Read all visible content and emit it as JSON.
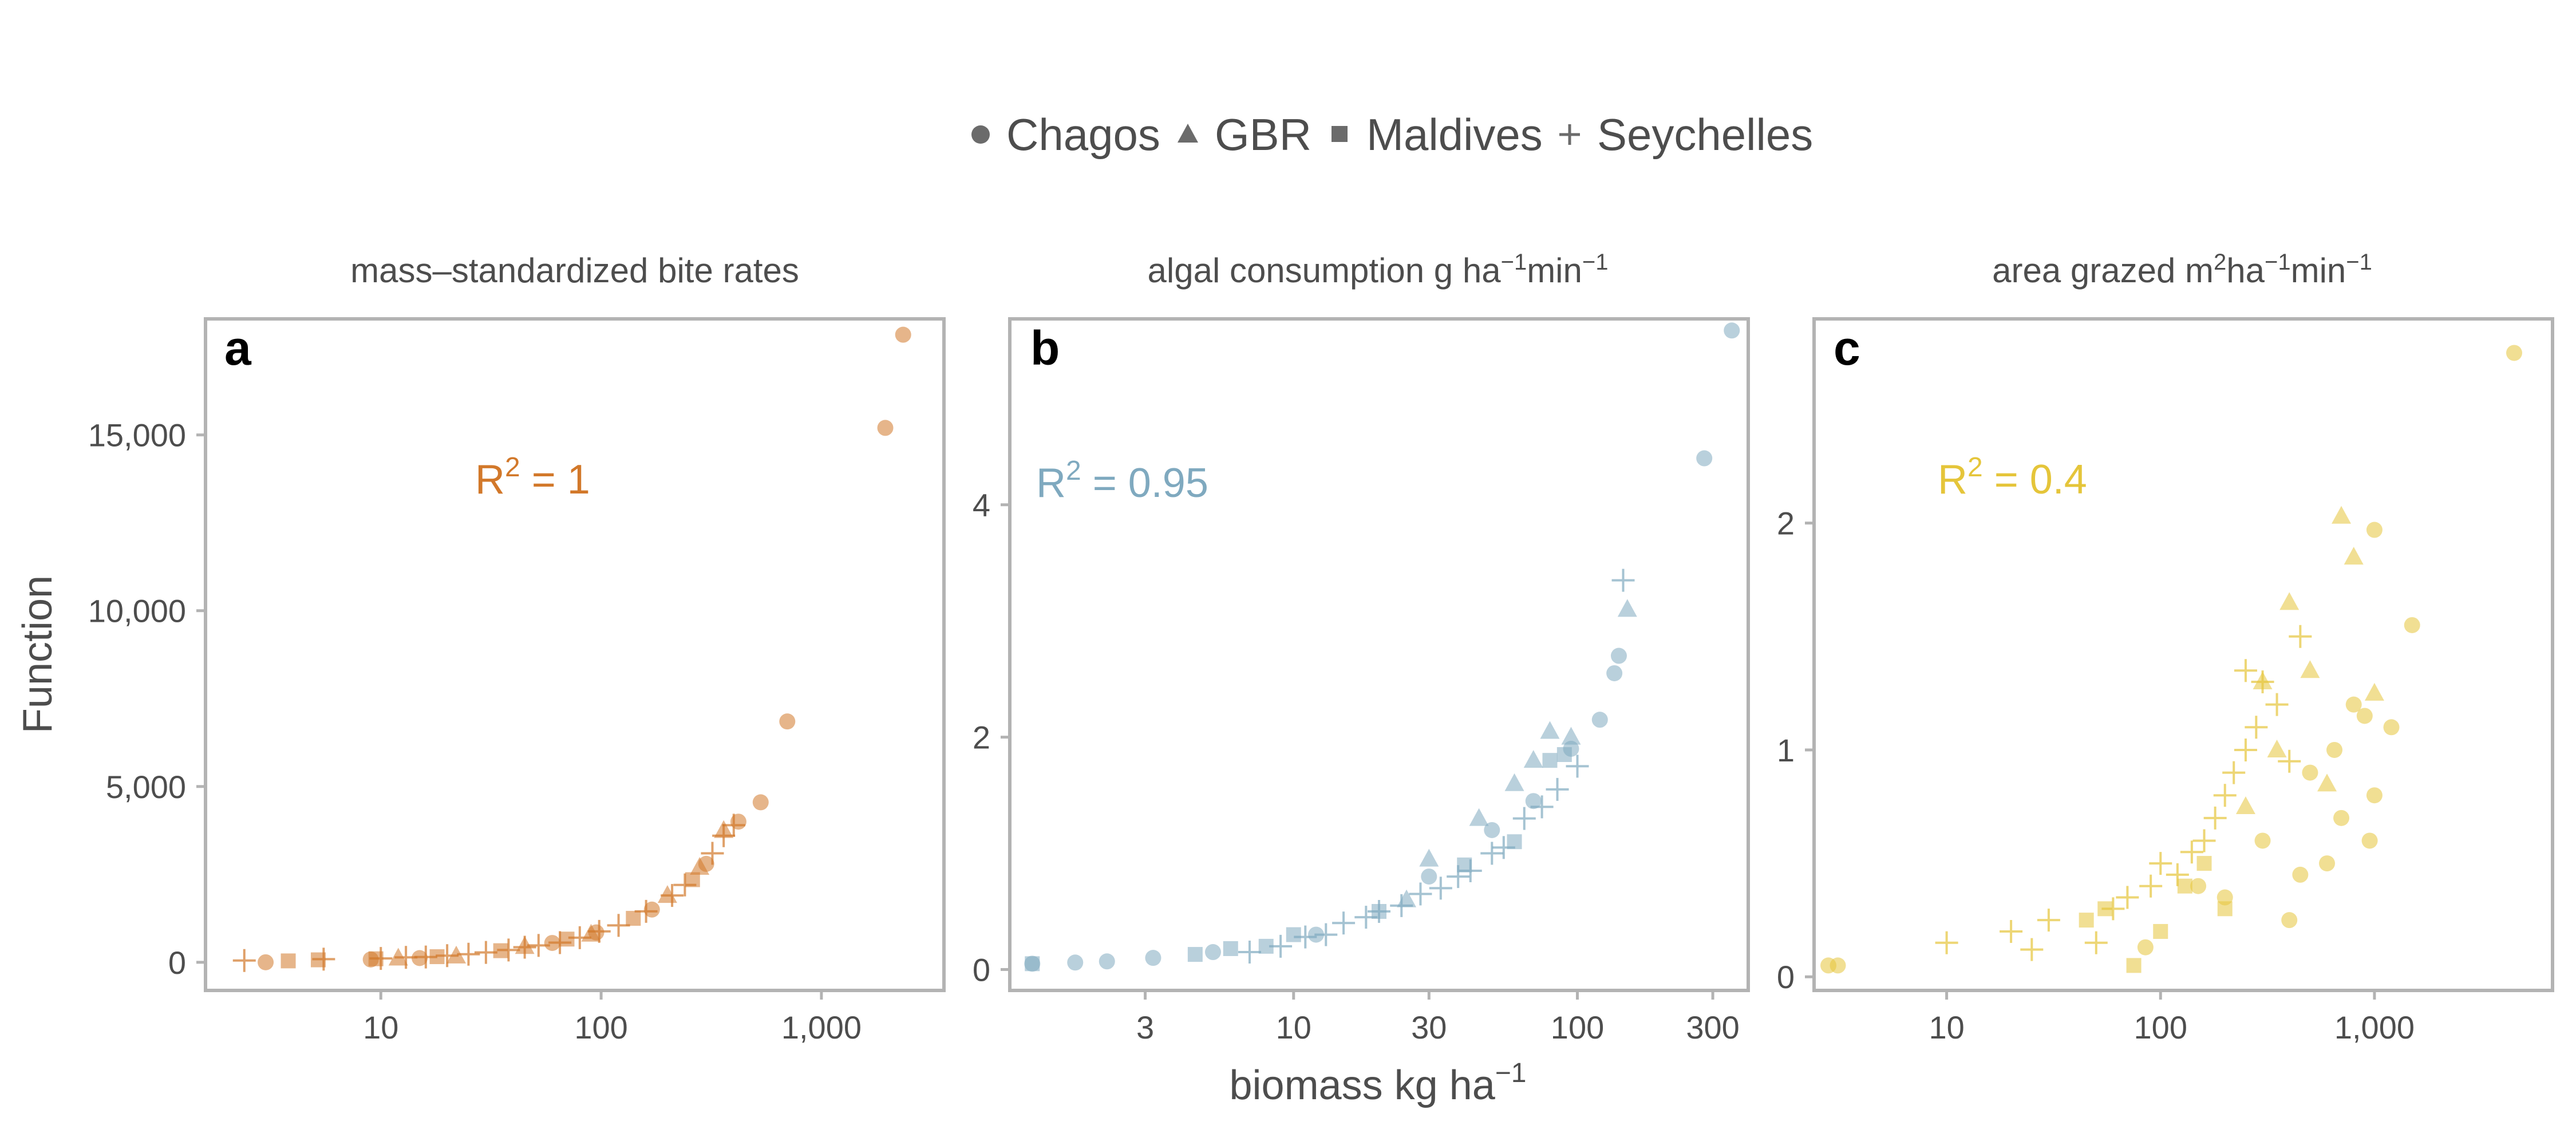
{
  "legend": {
    "entries": [
      {
        "name": "Chagos",
        "marker": "circle"
      },
      {
        "name": "GBR",
        "marker": "triangle"
      },
      {
        "name": "Maldives",
        "marker": "square"
      },
      {
        "name": "Seychelles",
        "marker": "plus"
      }
    ]
  },
  "axes_text": {
    "xlabel": "biomass kg ha",
    "xlabel_sup": "−1",
    "ylabel": "Function"
  },
  "chart_data": [
    {
      "type": "scatter",
      "panel": "a",
      "title": "mass–standardized bite rates",
      "annotation": {
        "text": "R",
        "sup": "2",
        "rest": " = 1"
      },
      "color": "#d2782a",
      "x_scale": "log",
      "xlim": [
        1.6,
        3600
      ],
      "ylim": [
        -800,
        18300
      ],
      "x_ticks": [
        {
          "value": 10,
          "label": "10"
        },
        {
          "value": 100,
          "label": "100"
        },
        {
          "value": 1000,
          "label": "1,000"
        }
      ],
      "y_ticks": [
        {
          "value": 0,
          "label": "0"
        },
        {
          "value": 5000,
          "label": "5,000"
        },
        {
          "value": 10000,
          "label": "10,000"
        },
        {
          "value": 15000,
          "label": "15,000"
        }
      ],
      "series": [
        {
          "name": "Chagos",
          "marker": "circle",
          "points": [
            [
              3,
              0
            ],
            [
              9,
              80
            ],
            [
              15,
              120
            ],
            [
              60,
              550
            ],
            [
              95,
              850
            ],
            [
              170,
              1500
            ],
            [
              300,
              2800
            ],
            [
              420,
              4000
            ],
            [
              530,
              4550
            ],
            [
              700,
              6850
            ],
            [
              1950,
              15200
            ],
            [
              2350,
              17850
            ]
          ]
        },
        {
          "name": "GBR",
          "marker": "triangle",
          "points": [
            [
              12,
              120
            ],
            [
              22,
              180
            ],
            [
              45,
              450
            ],
            [
              90,
              800
            ],
            [
              200,
              1900
            ],
            [
              280,
              2700
            ],
            [
              360,
              3750
            ]
          ]
        },
        {
          "name": "Maldives",
          "marker": "square",
          "points": [
            [
              3.8,
              40
            ],
            [
              5.2,
              70
            ],
            [
              9.5,
              100
            ],
            [
              18,
              160
            ],
            [
              35,
              330
            ],
            [
              70,
              660
            ],
            [
              140,
              1250
            ],
            [
              260,
              2350
            ]
          ]
        },
        {
          "name": "Seychelles",
          "marker": "plus",
          "points": [
            [
              2.4,
              50
            ],
            [
              5.5,
              90
            ],
            [
              10,
              110
            ],
            [
              13,
              140
            ],
            [
              16,
              150
            ],
            [
              20,
              190
            ],
            [
              25,
              230
            ],
            [
              30,
              280
            ],
            [
              38,
              350
            ],
            [
              45,
              430
            ],
            [
              52,
              480
            ],
            [
              65,
              560
            ],
            [
              80,
              700
            ],
            [
              98,
              880
            ],
            [
              120,
              1050
            ],
            [
              160,
              1450
            ],
            [
              210,
              1900
            ],
            [
              240,
              2200
            ],
            [
              320,
              3100
            ],
            [
              360,
              3600
            ],
            [
              400,
              3900
            ]
          ]
        }
      ]
    },
    {
      "type": "scatter",
      "panel": "b",
      "title": "algal consumption g ha",
      "title_sup1": "−1",
      "title_mid": "min",
      "title_sup2": "−1",
      "annotation": {
        "text": "R",
        "sup": "2",
        "rest": " = 0.95"
      },
      "color": "#7fa9bf",
      "x_scale": "log",
      "xlim": [
        1.0,
        400
      ],
      "ylim": [
        -0.18,
        5.6
      ],
      "x_ticks": [
        {
          "value": 3,
          "label": "3"
        },
        {
          "value": 10,
          "label": "10"
        },
        {
          "value": 30,
          "label": "30"
        },
        {
          "value": 100,
          "label": "100"
        },
        {
          "value": 300,
          "label": "300"
        }
      ],
      "y_ticks": [
        {
          "value": 0,
          "label": "0"
        },
        {
          "value": 2,
          "label": "2"
        },
        {
          "value": 4,
          "label": "4"
        }
      ],
      "series": [
        {
          "name": "Chagos",
          "marker": "circle",
          "points": [
            [
              1.2,
              0.05
            ],
            [
              1.7,
              0.06
            ],
            [
              2.2,
              0.07
            ],
            [
              3.2,
              0.1
            ],
            [
              5.2,
              0.15
            ],
            [
              12,
              0.3
            ],
            [
              30,
              0.8
            ],
            [
              50,
              1.2
            ],
            [
              70,
              1.45
            ],
            [
              95,
              1.9
            ],
            [
              120,
              2.15
            ],
            [
              135,
              2.55
            ],
            [
              140,
              2.7
            ],
            [
              280,
              4.4
            ],
            [
              350,
              5.5
            ]
          ]
        },
        {
          "name": "GBR",
          "marker": "triangle",
          "points": [
            [
              25,
              0.6
            ],
            [
              30,
              0.95
            ],
            [
              45,
              1.3
            ],
            [
              60,
              1.6
            ],
            [
              70,
              1.8
            ],
            [
              80,
              2.05
            ],
            [
              95,
              2.0
            ],
            [
              150,
              3.1
            ]
          ]
        },
        {
          "name": "Maldives",
          "marker": "square",
          "points": [
            [
              1.2,
              0.05
            ],
            [
              4.5,
              0.13
            ],
            [
              6,
              0.18
            ],
            [
              8,
              0.2
            ],
            [
              10,
              0.3
            ],
            [
              20,
              0.5
            ],
            [
              40,
              0.9
            ],
            [
              60,
              1.1
            ],
            [
              80,
              1.8
            ],
            [
              90,
              1.85
            ]
          ]
        },
        {
          "name": "Seychelles",
          "marker": "plus",
          "points": [
            [
              7,
              0.15
            ],
            [
              9,
              0.2
            ],
            [
              11,
              0.28
            ],
            [
              13,
              0.3
            ],
            [
              15,
              0.4
            ],
            [
              18,
              0.45
            ],
            [
              20,
              0.5
            ],
            [
              24,
              0.55
            ],
            [
              28,
              0.65
            ],
            [
              33,
              0.7
            ],
            [
              38,
              0.8
            ],
            [
              42,
              0.85
            ],
            [
              50,
              1.0
            ],
            [
              55,
              1.05
            ],
            [
              65,
              1.3
            ],
            [
              75,
              1.4
            ],
            [
              85,
              1.55
            ],
            [
              100,
              1.75
            ],
            [
              145,
              3.35
            ]
          ]
        }
      ]
    },
    {
      "type": "scatter",
      "panel": "c",
      "title": "area grazed m",
      "title_sup0": "2",
      "title_mid0": "ha",
      "title_sup1": "−1",
      "title_mid": "min",
      "title_sup2": "−1",
      "annotation": {
        "text": "R",
        "sup": "2",
        "rest": " = 0.4"
      },
      "color": "#e5c53a",
      "x_scale": "log",
      "xlim": [
        2.4,
        6800
      ],
      "ylim": [
        -0.06,
        2.9
      ],
      "x_ticks": [
        {
          "value": 10,
          "label": "10"
        },
        {
          "value": 100,
          "label": "100"
        },
        {
          "value": 1000,
          "label": "1,000"
        }
      ],
      "y_ticks": [
        {
          "value": 0,
          "label": "0"
        },
        {
          "value": 1,
          "label": "1"
        },
        {
          "value": 2,
          "label": "2"
        }
      ],
      "series": [
        {
          "name": "Chagos",
          "marker": "circle",
          "points": [
            [
              2.8,
              0.05
            ],
            [
              3.1,
              0.05
            ],
            [
              85,
              0.13
            ],
            [
              150,
              0.4
            ],
            [
              200,
              0.35
            ],
            [
              300,
              0.6
            ],
            [
              400,
              0.25
            ],
            [
              450,
              0.45
            ],
            [
              500,
              0.9
            ],
            [
              600,
              0.5
            ],
            [
              650,
              1.0
            ],
            [
              700,
              0.7
            ],
            [
              800,
              1.2
            ],
            [
              900,
              1.15
            ],
            [
              950,
              0.6
            ],
            [
              1000,
              0.8
            ],
            [
              1000,
              1.97
            ],
            [
              1200,
              1.1
            ],
            [
              1500,
              1.55
            ],
            [
              4500,
              2.75
            ]
          ]
        },
        {
          "name": "GBR",
          "marker": "triangle",
          "points": [
            [
              250,
              0.75
            ],
            [
              300,
              1.3
            ],
            [
              350,
              1.0
            ],
            [
              400,
              1.65
            ],
            [
              500,
              1.35
            ],
            [
              600,
              0.85
            ],
            [
              700,
              2.03
            ],
            [
              800,
              1.85
            ],
            [
              1000,
              1.25
            ]
          ]
        },
        {
          "name": "Maldives",
          "marker": "square",
          "points": [
            [
              45,
              0.25
            ],
            [
              55,
              0.3
            ],
            [
              75,
              0.05
            ],
            [
              100,
              0.2
            ],
            [
              130,
              0.4
            ],
            [
              160,
              0.5
            ],
            [
              200,
              0.3
            ]
          ]
        },
        {
          "name": "Seychelles",
          "marker": "plus",
          "points": [
            [
              10,
              0.15
            ],
            [
              20,
              0.2
            ],
            [
              25,
              0.12
            ],
            [
              30,
              0.25
            ],
            [
              50,
              0.15
            ],
            [
              60,
              0.3
            ],
            [
              70,
              0.35
            ],
            [
              90,
              0.4
            ],
            [
              100,
              0.5
            ],
            [
              120,
              0.45
            ],
            [
              140,
              0.55
            ],
            [
              160,
              0.6
            ],
            [
              180,
              0.7
            ],
            [
              200,
              0.8
            ],
            [
              220,
              0.9
            ],
            [
              250,
              1.0
            ],
            [
              280,
              1.1
            ],
            [
              300,
              1.3
            ],
            [
              350,
              1.2
            ],
            [
              400,
              0.95
            ],
            [
              450,
              1.5
            ],
            [
              250,
              1.35
            ]
          ]
        }
      ]
    }
  ]
}
